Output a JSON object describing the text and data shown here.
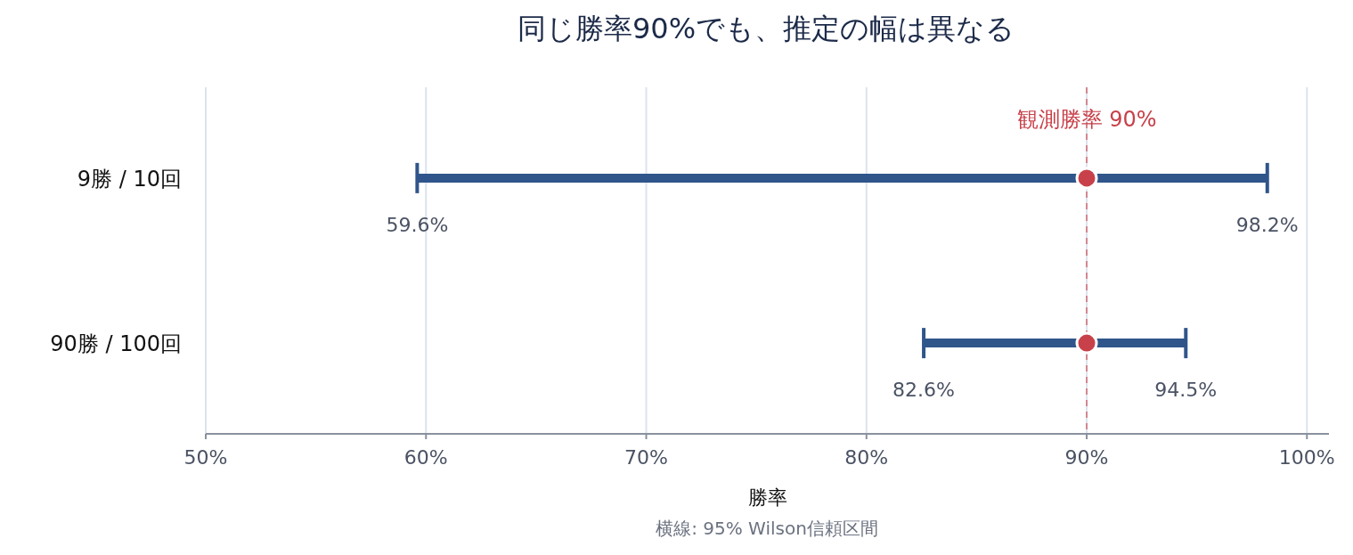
{
  "chart_data": {
    "type": "scatter",
    "orientation": "horizontal",
    "title": "同じ勝率90%でも、推定の幅は異なる",
    "xlabel": "勝率",
    "categories": [
      "9勝 / 10回",
      "90勝 / 100回"
    ],
    "values": [
      90,
      90
    ],
    "errors": [
      [
        59.6,
        98.2
      ],
      [
        82.6,
        94.5
      ]
    ],
    "color": "#c8414a",
    "marker": "circle",
    "xlim": [
      50,
      101
    ],
    "xticks": [
      {
        "value": 50,
        "label": "50%"
      },
      {
        "value": 60,
        "label": "60%"
      },
      {
        "value": 70,
        "label": "70%"
      },
      {
        "value": 80,
        "label": "80%"
      },
      {
        "value": 90,
        "label": "90%"
      },
      {
        "value": 100,
        "label": "100%"
      }
    ],
    "grid": "x",
    "ref_lines": [
      {
        "axis": "x",
        "value": 90,
        "label": "観測勝率 90%",
        "color": "#c8414a",
        "line_style": "dashed"
      }
    ],
    "annotations": [
      {
        "text": "59.6%",
        "x": 59.6,
        "y": "9勝 / 10回"
      },
      {
        "text": "98.2%",
        "x": 98.2,
        "y": "9勝 / 10回"
      },
      {
        "text": "82.6%",
        "x": 82.6,
        "y": "90勝 / 100回"
      },
      {
        "text": "94.5%",
        "x": 94.5,
        "y": "90勝 / 100回"
      },
      "横線: 95% Wilson信頼区間"
    ]
  }
}
